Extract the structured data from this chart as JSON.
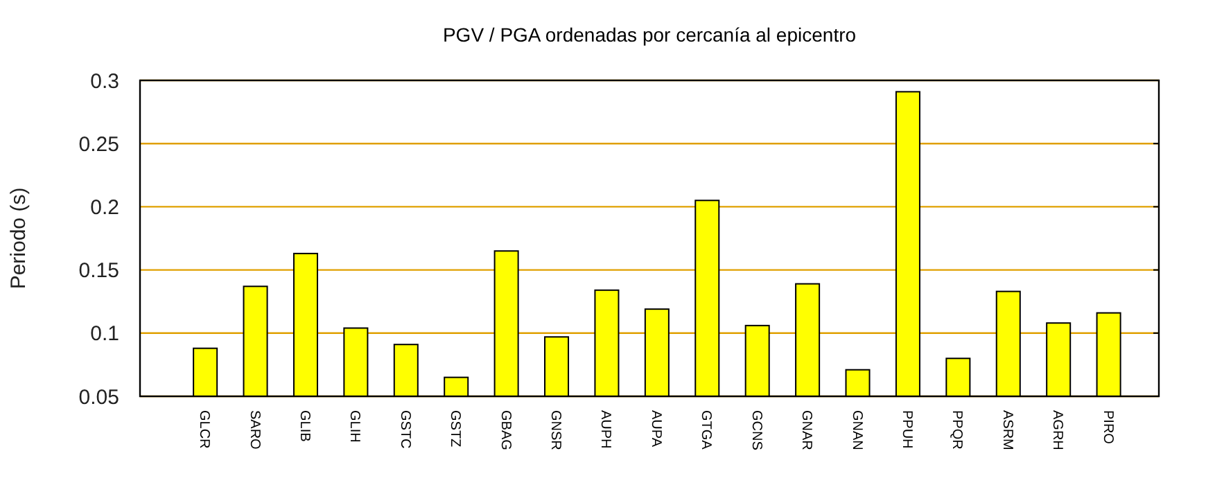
{
  "chart_data": {
    "type": "bar",
    "title": "PGV / PGA ordenadas por cercanía al epicentro",
    "ylabel": "Periodo (s)",
    "categories": [
      "GLCR",
      "SARO",
      "GLIB",
      "GLIH",
      "GSTC",
      "GSTZ",
      "GBAG",
      "GNSR",
      "AUPH",
      "AUPA",
      "GTGA",
      "GCNS",
      "GNAR",
      "GNAN",
      "PPUH",
      "PPQR",
      "ASRM",
      "AGRH",
      "PIRO"
    ],
    "values": [
      0.088,
      0.137,
      0.163,
      0.104,
      0.091,
      0.065,
      0.165,
      0.097,
      0.134,
      0.119,
      0.205,
      0.106,
      0.139,
      0.071,
      0.291,
      0.08,
      0.133,
      0.108,
      0.116
    ],
    "color": "#ffff00",
    "ylim": [
      0.05,
      0.3
    ],
    "yticks": [
      0.05,
      0.1,
      0.15,
      0.2,
      0.25,
      0.3
    ],
    "grid": "y"
  }
}
